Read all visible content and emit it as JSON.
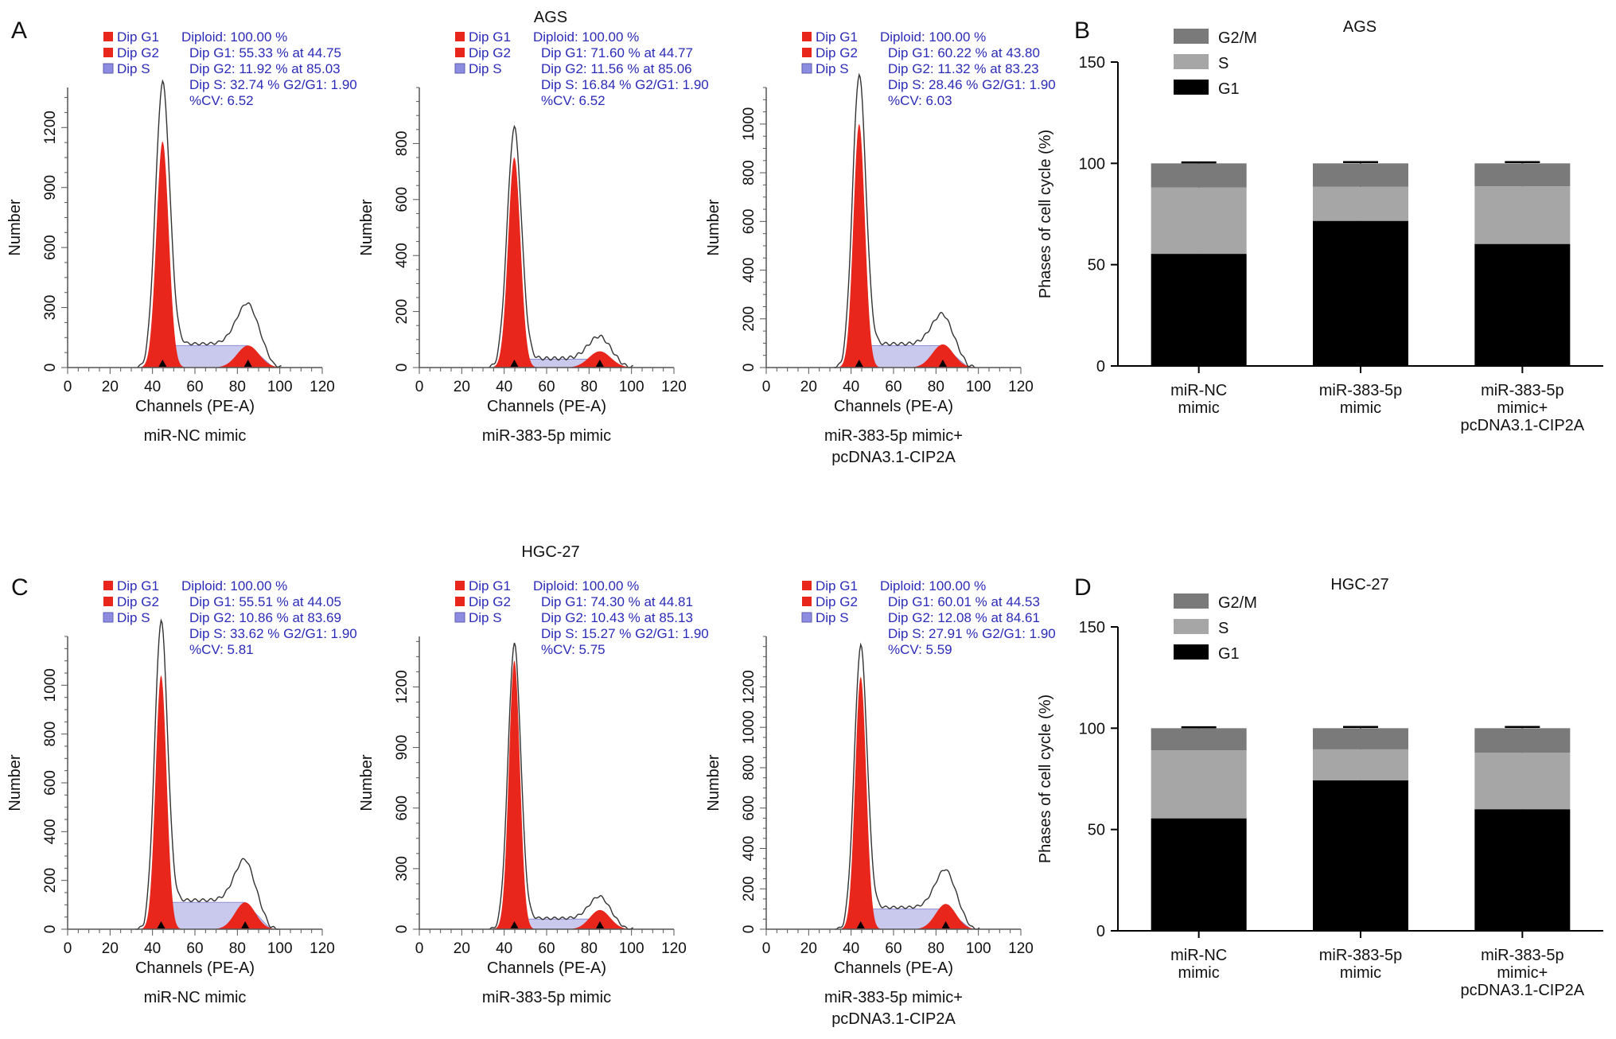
{
  "panel_letters": [
    "A",
    "B",
    "C",
    "D"
  ],
  "histogram_rows": [
    {
      "title": "AGS"
    },
    {
      "title": "HGC-27"
    }
  ],
  "histogram_common": {
    "xlabel": "Channels (PE-A)",
    "ylabel": "Number",
    "xticks": [
      0,
      20,
      40,
      60,
      80,
      100,
      120
    ],
    "legend": [
      "Dip G1",
      "Dip G2",
      "Dip S"
    ],
    "colors": {
      "g1": "#e8261c",
      "g2": "#e8261c",
      "s": "#c9c9ee",
      "legend_s": "#8c8ce0",
      "text_blue": "#2b2bb8",
      "outline": "#333333"
    }
  },
  "chart_data": [
    {
      "type": "area",
      "row": 0,
      "col": 0,
      "xlabel": "Channels (PE-A)",
      "ylabel": "Number",
      "xlim": [
        0,
        120
      ],
      "ylim": [
        0,
        1400
      ],
      "yticks": [
        0,
        300,
        600,
        900,
        1200
      ],
      "caption": [
        "miR-NC mimic"
      ],
      "stats": [
        "Diploid: 100.00 %",
        "Dip G1: 55.33 % at 44.75",
        "Dip G2: 11.92 % at 85.03",
        "Dip S: 32.74 % G2/G1: 1.90",
        "%CV: 6.52"
      ],
      "g1": {
        "pos": 44.75,
        "sd": 2.9,
        "peak": 1130
      },
      "g2": {
        "pos": 85.03,
        "sd": 5.2,
        "peak": 110
      },
      "s_level": 110,
      "outline_peak": 1310,
      "outline_g2_peak": 205
    },
    {
      "type": "area",
      "row": 0,
      "col": 1,
      "xlabel": "Channels (PE-A)",
      "ylabel": "Number",
      "xlim": [
        0,
        120
      ],
      "ylim": [
        0,
        1000
      ],
      "yticks": [
        0,
        200,
        400,
        600,
        800
      ],
      "caption": [
        "miR-383-5p mimic"
      ],
      "stats": [
        "Diploid: 100.00 %",
        "Dip G1: 71.60 % at 44.77",
        "Dip G2: 11.56 % at 85.06",
        "Dip S: 16.84 % G2/G1: 1.90",
        "%CV: 6.52"
      ],
      "g1": {
        "pos": 44.77,
        "sd": 2.9,
        "peak": 750
      },
      "g2": {
        "pos": 85.06,
        "sd": 5.2,
        "peak": 58
      },
      "s_level": 30,
      "outline_peak": 825,
      "outline_g2_peak": 80
    },
    {
      "type": "area",
      "row": 0,
      "col": 2,
      "xlabel": "Channels (PE-A)",
      "ylabel": "Number",
      "xlim": [
        0,
        120
      ],
      "ylim": [
        0,
        1150
      ],
      "yticks": [
        0,
        200,
        400,
        600,
        800,
        1000
      ],
      "caption": [
        "miR-383-5p mimic+",
        "pcDNA3.1-CIP2A"
      ],
      "stats": [
        "Diploid: 100.00 %",
        "Dip G1: 60.22 % at 43.80",
        "Dip G2: 11.32 % at 83.23",
        "Dip S: 28.46 % G2/G1: 1.90",
        "%CV: 6.03"
      ],
      "g1": {
        "pos": 43.8,
        "sd": 2.7,
        "peak": 1000
      },
      "g2": {
        "pos": 83.23,
        "sd": 5.0,
        "peak": 95
      },
      "s_level": 90,
      "outline_peak": 1110,
      "outline_g2_peak": 125
    },
    {
      "type": "area",
      "row": 1,
      "col": 0,
      "xlabel": "Channels (PE-A)",
      "ylabel": "Number",
      "xlim": [
        0,
        120
      ],
      "ylim": [
        0,
        1200
      ],
      "yticks": [
        0,
        200,
        400,
        600,
        800,
        1000
      ],
      "caption": [
        "miR-NC mimic"
      ],
      "stats": [
        "Diploid: 100.00 %",
        "Dip G1: 55.51 % at 44.05",
        "Dip G2: 10.86 % at 83.69",
        "Dip S: 33.62 % G2/G1: 1.90",
        "%CV: 5.81"
      ],
      "g1": {
        "pos": 44.05,
        "sd": 2.6,
        "peak": 1040
      },
      "g2": {
        "pos": 83.69,
        "sd": 4.8,
        "peak": 110
      },
      "s_level": 110,
      "outline_peak": 1150,
      "outline_g2_peak": 170
    },
    {
      "type": "area",
      "row": 1,
      "col": 1,
      "xlabel": "Channels (PE-A)",
      "ylabel": "Number",
      "xlim": [
        0,
        120
      ],
      "ylim": [
        0,
        1450
      ],
      "yticks": [
        0,
        300,
        600,
        900,
        1200
      ],
      "caption": [
        "miR-383-5p mimic"
      ],
      "stats": [
        "Diploid: 100.00 %",
        "Dip G1: 74.30 % at 44.81",
        "Dip G2: 10.43 % at 85.13",
        "Dip S: 15.27 % G2/G1: 1.90",
        "%CV: 5.75"
      ],
      "g1": {
        "pos": 44.81,
        "sd": 2.6,
        "peak": 1330
      },
      "g2": {
        "pos": 85.13,
        "sd": 4.8,
        "peak": 95
      },
      "s_level": 50,
      "outline_peak": 1360,
      "outline_g2_peak": 110
    },
    {
      "type": "area",
      "row": 1,
      "col": 2,
      "xlabel": "Channels (PE-A)",
      "ylabel": "Number",
      "xlim": [
        0,
        120
      ],
      "ylim": [
        0,
        1450
      ],
      "yticks": [
        0,
        200,
        400,
        600,
        800,
        1000,
        1200
      ],
      "caption": [
        "miR-383-5p mimic+",
        "pcDNA3.1-CIP2A"
      ],
      "stats": [
        "Diploid: 100.00 %",
        "Dip G1: 60.01 % at 44.53",
        "Dip G2: 12.08 % at 84.61",
        "Dip S: 27.91 % G2/G1: 1.90",
        "%CV: 5.59"
      ],
      "g1": {
        "pos": 44.53,
        "sd": 2.6,
        "peak": 1250
      },
      "g2": {
        "pos": 84.61,
        "sd": 4.8,
        "peak": 125
      },
      "s_level": 100,
      "outline_peak": 1300,
      "outline_g2_peak": 190
    },
    {
      "type": "bar",
      "stacked": true,
      "panel": "B",
      "title": "AGS",
      "ylabel": "Phases of cell cycle (%)",
      "ylim": [
        0,
        150
      ],
      "yticks": [
        0,
        50,
        100,
        150
      ],
      "categories": [
        [
          "miR-NC",
          "mimic"
        ],
        [
          "miR-383-5p",
          "mimic"
        ],
        [
          "miR-383-5p",
          "mimic+",
          "pcDNA3.1-CIP2A"
        ]
      ],
      "legend": [
        "G2/M",
        "S",
        "G1"
      ],
      "legend_position": "top-left",
      "series": [
        {
          "name": "G1",
          "color": "#000000",
          "values": [
            55.33,
            71.6,
            60.22
          ],
          "err": [
            0.6,
            0.8,
            1.0
          ]
        },
        {
          "name": "S",
          "color": "#a6a6a6",
          "values": [
            32.74,
            16.84,
            28.46
          ],
          "err": [
            1.0,
            1.0,
            1.4
          ]
        },
        {
          "name": "G2/M",
          "color": "#7a7a7a",
          "values": [
            11.92,
            11.56,
            11.32
          ],
          "err": [
            0.5,
            0.6,
            0.6
          ]
        }
      ]
    },
    {
      "type": "bar",
      "stacked": true,
      "panel": "D",
      "title": "HGC-27",
      "ylabel": "Phases of cell cycle (%)",
      "ylim": [
        0,
        150
      ],
      "yticks": [
        0,
        50,
        100,
        150
      ],
      "categories": [
        [
          "miR-NC",
          "mimic"
        ],
        [
          "miR-383-5p",
          "mimic"
        ],
        [
          "miR-383-5p",
          "mimic+",
          "pcDNA3.1-CIP2A"
        ]
      ],
      "legend": [
        "G2/M",
        "S",
        "G1"
      ],
      "legend_position": "top-left",
      "series": [
        {
          "name": "G1",
          "color": "#000000",
          "values": [
            55.51,
            74.3,
            60.01
          ],
          "err": [
            0.6,
            0.8,
            1.0
          ]
        },
        {
          "name": "S",
          "color": "#a6a6a6",
          "values": [
            33.62,
            15.27,
            27.91
          ],
          "err": [
            1.0,
            1.2,
            1.4
          ]
        },
        {
          "name": "G2/M",
          "color": "#7a7a7a",
          "values": [
            10.86,
            10.43,
            12.08
          ],
          "err": [
            0.5,
            0.6,
            0.6
          ]
        }
      ]
    }
  ]
}
